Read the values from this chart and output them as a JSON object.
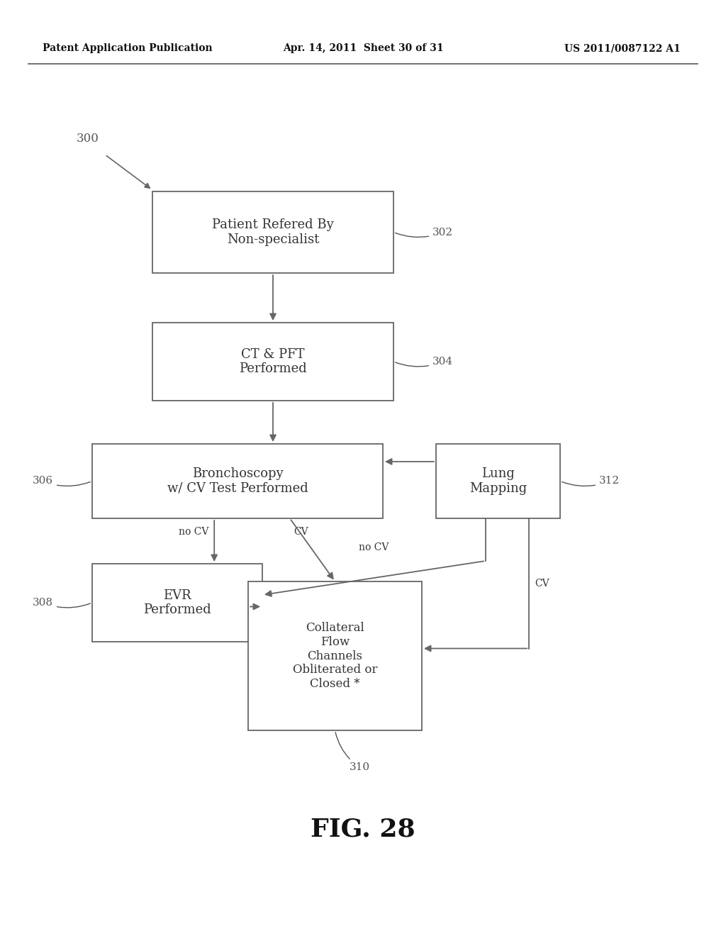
{
  "bg_color": "#ffffff",
  "header_left": "Patent Application Publication",
  "header_center": "Apr. 14, 2011  Sheet 30 of 31",
  "header_right": "US 2011/0087122 A1",
  "fig_label": "FIG. 28",
  "label_300": "300",
  "label_302": "302",
  "label_304": "304",
  "label_306": "306",
  "label_308": "308",
  "label_310": "310",
  "label_312": "312",
  "box302_text": "Patient Refered By\nNon-specialist",
  "box304_text": "CT & PFT\nPerformed",
  "box306_text": "Bronchoscopy\nw/ CV Test Performed",
  "box308_text": "EVR\nPerformed",
  "box310_text": "Collateral\nFlow\nChannels\nObliterated or\nClosed *",
  "box312_text": "Lung\nMapping",
  "arrow_color": "#666666",
  "box_edge_color": "#666666",
  "text_color": "#333333",
  "label_color": "#555555",
  "line_color": "#666666"
}
